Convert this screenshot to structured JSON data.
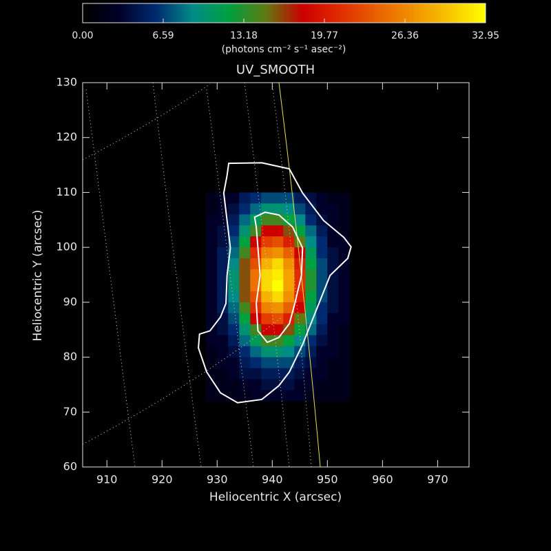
{
  "chart_data": {
    "type": "heatmap",
    "title": "UV_SMOOTH",
    "xlabel": "Heliocentric X (arcsec)",
    "ylabel": "Heliocentric Y (arcsec)",
    "xlim": [
      905.6,
      975.7
    ],
    "ylim": [
      60,
      130
    ],
    "xticks": [
      910,
      920,
      930,
      940,
      950,
      960,
      970
    ],
    "yticks": [
      60,
      70,
      80,
      90,
      100,
      110,
      120,
      130
    ],
    "colorbar": {
      "label": "(photons cm⁻² s⁻¹ asec⁻²)",
      "zlim": [
        0,
        32.95
      ],
      "ticks": [
        {
          "value": 0,
          "label": "0.00"
        },
        6.59,
        13.18,
        19.77,
        26.36,
        32.95
      ],
      "colors": [
        "#000000",
        "#000028",
        "#002a70",
        "#008a88",
        "#00a040",
        "#607a10",
        "#cc0000",
        "#e02c00",
        "#e86000",
        "#f09000",
        "#f8c400",
        "#ffff00"
      ]
    },
    "x": [
      929,
      931,
      933,
      935,
      937,
      939,
      941,
      943,
      945,
      947,
      949,
      951,
      953
    ],
    "y": [
      109,
      107,
      105,
      103,
      101,
      99,
      97,
      95,
      93,
      91,
      89,
      87,
      85,
      83,
      81,
      79,
      77,
      75,
      73
    ],
    "z": [
      [
        2,
        3,
        3,
        5,
        6,
        7,
        7,
        7,
        5,
        4,
        3,
        2,
        2
      ],
      [
        2,
        3,
        4,
        6,
        8,
        10,
        10,
        9,
        7,
        5,
        3,
        3,
        2
      ],
      [
        3,
        3,
        5,
        8,
        11,
        14,
        14,
        12,
        9,
        6,
        4,
        3,
        2
      ],
      [
        3,
        4,
        6,
        10,
        14,
        18,
        18,
        16,
        12,
        8,
        5,
        3,
        2
      ],
      [
        3,
        4,
        7,
        12,
        18,
        22,
        23,
        20,
        15,
        9,
        6,
        3,
        3
      ],
      [
        3,
        5,
        8,
        14,
        21,
        26,
        27,
        24,
        18,
        11,
        6,
        4,
        3
      ],
      [
        3,
        5,
        9,
        16,
        23,
        29,
        31,
        27,
        20,
        12,
        7,
        4,
        3
      ],
      [
        3,
        5,
        10,
        16,
        25,
        31,
        32,
        28,
        21,
        13,
        7,
        4,
        3
      ],
      [
        3,
        5,
        10,
        16,
        25,
        31,
        33,
        28,
        21,
        13,
        7,
        4,
        3
      ],
      [
        3,
        5,
        9,
        16,
        23,
        29,
        31,
        27,
        20,
        12,
        7,
        4,
        3
      ],
      [
        3,
        5,
        8,
        14,
        21,
        26,
        27,
        24,
        18,
        11,
        6,
        4,
        3
      ],
      [
        3,
        4,
        7,
        12,
        18,
        22,
        23,
        20,
        15,
        9,
        6,
        3,
        3
      ],
      [
        3,
        4,
        6,
        10,
        14,
        18,
        18,
        16,
        12,
        8,
        5,
        3,
        2
      ],
      [
        3,
        3,
        5,
        8,
        11,
        14,
        14,
        12,
        9,
        6,
        4,
        3,
        2
      ],
      [
        2,
        3,
        4,
        6,
        8,
        10,
        10,
        9,
        7,
        5,
        3,
        3,
        2
      ],
      [
        2,
        3,
        3,
        5,
        6,
        7,
        7,
        7,
        5,
        4,
        3,
        2,
        2
      ],
      [
        2,
        2,
        3,
        4,
        4,
        5,
        5,
        5,
        4,
        3,
        3,
        2,
        2
      ],
      [
        2,
        2,
        2,
        3,
        3,
        4,
        4,
        4,
        3,
        3,
        2,
        2,
        2
      ],
      [
        2,
        2,
        2,
        2,
        3,
        3,
        3,
        3,
        3,
        2,
        2,
        2,
        2
      ]
    ],
    "contour_color": "#ffffff",
    "contours": [
      {
        "x": [
          932.1,
          938.1,
          943.1,
          945.5,
          949.3,
          953.0,
          954.3,
          953.7,
          950.5,
          948.0,
          945.5,
          943.1,
          941.2,
          938.1,
          933.7,
          930.6,
          928.1,
          926.6,
          926.8,
          928.7,
          930.6,
          931.6,
          931.8,
          932.4,
          931.8,
          931.2,
          931.8
        ],
        "y": [
          115.3,
          115.4,
          114.3,
          109.9,
          104.9,
          101.8,
          100.1,
          98.0,
          94.9,
          88.6,
          82.3,
          77.3,
          74.8,
          72.3,
          71.7,
          73.5,
          77.3,
          81.7,
          84.2,
          84.8,
          87.3,
          89.8,
          94.9,
          99.9,
          104.9,
          109.9,
          113.1
        ]
      },
      {
        "x": [
          936.8,
          938.7,
          941.2,
          943.7,
          945.5,
          945.3,
          944.1,
          943.1,
          941.2,
          939.1,
          937.4,
          937.1,
          937.8,
          937.4,
          937.1
        ],
        "y": [
          105.5,
          106.4,
          105.9,
          103.7,
          99.9,
          94.9,
          89.8,
          86.1,
          83.6,
          82.7,
          84.8,
          89.8,
          94.9,
          99.9,
          103.7
        ]
      }
    ]
  }
}
